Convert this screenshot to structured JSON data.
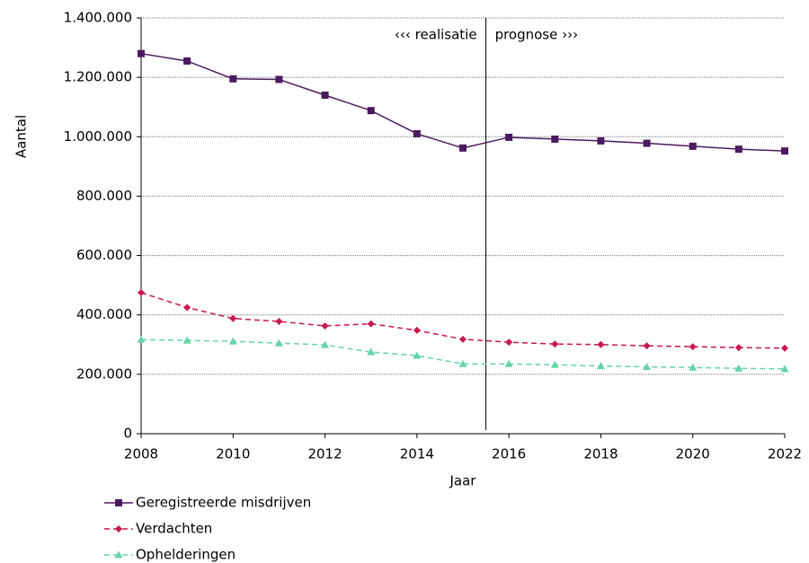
{
  "chart_data": {
    "type": "line",
    "x_label": "Jaar",
    "y_label": "Aantal",
    "x": [
      2008,
      2009,
      2010,
      2011,
      2012,
      2013,
      2014,
      2015,
      2016,
      2017,
      2018,
      2019,
      2020,
      2021,
      2022
    ],
    "xlim": [
      2008,
      2022
    ],
    "xticks": [
      2008,
      2010,
      2012,
      2014,
      2016,
      2018,
      2020,
      2022
    ],
    "ylim": [
      0,
      1400000
    ],
    "yticks": [
      0,
      {
        "value": 200000,
        "label": "200.000"
      },
      {
        "value": 400000,
        "label": "400.000"
      },
      {
        "value": 600000,
        "label": "600.000"
      },
      {
        "value": 800000,
        "label": "800.000"
      },
      {
        "value": 1000000,
        "label": "1.000.000"
      },
      {
        "value": 1200000,
        "label": "1.200.000"
      },
      {
        "value": 1400000,
        "label": "1.400.000"
      }
    ],
    "grid": true,
    "divider_x": 2015.5,
    "annotations": [
      {
        "text": "‹‹‹ realisatie"
      },
      {
        "text": "prognose ›››"
      }
    ],
    "legend": "bottom-left",
    "series": [
      {
        "name": "Geregistreerde misdrijven",
        "color": "#4b1a5e",
        "line_style": "solid",
        "marker": "square",
        "values": [
          1280000,
          1255000,
          1195000,
          1193000,
          1140000,
          1088000,
          1010000,
          962000,
          998000,
          992000,
          986000,
          978000,
          968000,
          958000,
          952000
        ]
      },
      {
        "name": "Verdachten",
        "color": "#c8174f",
        "line_style": "dashed",
        "marker": "diamond",
        "values": [
          475000,
          425000,
          388000,
          378000,
          363000,
          370000,
          348000,
          318000,
          308000,
          302000,
          300000,
          296000,
          293000,
          290000,
          288000
        ]
      },
      {
        "name": "Ophelderingen",
        "color": "#66d3a8",
        "line_style": "dashed",
        "marker": "triangle",
        "values": [
          317000,
          314000,
          311000,
          305000,
          299000,
          275000,
          263000,
          235000,
          235000,
          232000,
          228000,
          225000,
          223000,
          220000,
          218000
        ]
      }
    ]
  }
}
